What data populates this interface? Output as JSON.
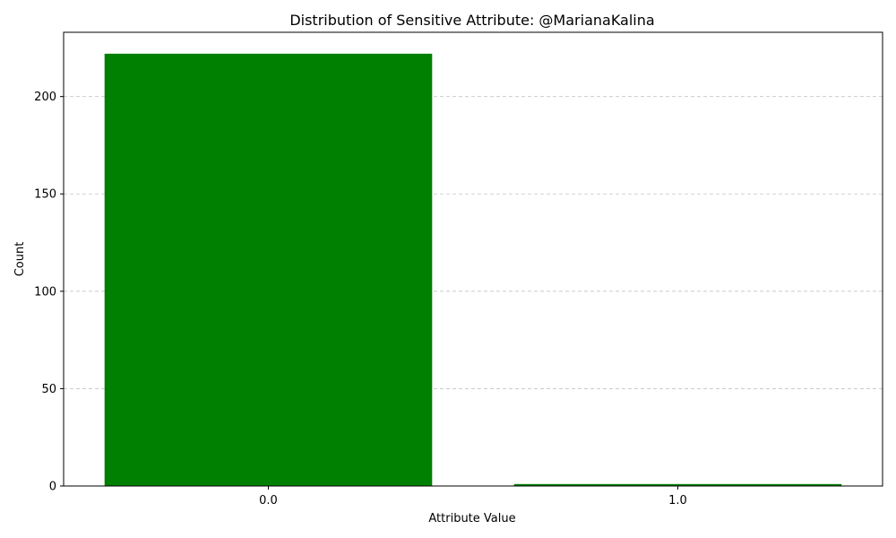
{
  "chart_data": {
    "type": "bar",
    "title": "Distribution of Sensitive Attribute: @MarianaKalina",
    "xlabel": "Attribute Value",
    "ylabel": "Count",
    "categories": [
      "0.0",
      "1.0"
    ],
    "values": [
      222,
      1
    ],
    "ylim": [
      0,
      233
    ],
    "yticks": [
      0,
      50,
      100,
      150,
      200
    ],
    "grid": {
      "y": true,
      "x": false,
      "style": "dashed"
    },
    "bar_color": "#008000",
    "grid_color": "#c4c4c4"
  }
}
